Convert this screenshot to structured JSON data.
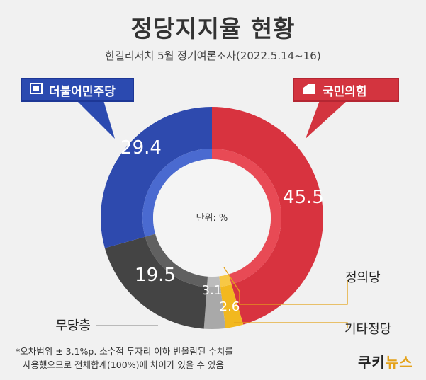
{
  "header": {
    "title": "정당지지율 현황",
    "subtitle": "한길리서치 5월 정기여론조사(2022.5.14~16)"
  },
  "badges": {
    "dem": "더불어민주당",
    "ppp": "국민의힘"
  },
  "chart_data": {
    "type": "donut",
    "unit_label": "단위: %",
    "slices": [
      {
        "name": "국민의힘",
        "value": 45.5,
        "color": "#d8333f",
        "inner_color": "#e84a55",
        "label": "45.5",
        "label_color": "#ffffff"
      },
      {
        "name": "기타정당",
        "value": 2.6,
        "color": "#f2b81f",
        "inner_color": "#f7c845",
        "label": "2.6",
        "label_color": "#ffffff"
      },
      {
        "name": "",
        "value": 3.1,
        "color": "#a9a9a9",
        "inner_color": "#bcbcbc",
        "label": "3.1",
        "label_color": "#ffffff"
      },
      {
        "name": "무당층",
        "value": 19.5,
        "color": "#444444",
        "inner_color": "#606060",
        "label": "19.5",
        "label_color": "#ffffff"
      },
      {
        "name": "더불어민주당",
        "value": 29.4,
        "color": "#2e4aae",
        "inner_color": "#4a6ad0",
        "label": "29.4",
        "label_color": "#ffffff"
      }
    ],
    "callouts": [
      {
        "text": "정의당",
        "color": "#e4a21a"
      },
      {
        "text": "기타정당",
        "color": "#e4a21a"
      },
      {
        "text": "무당층",
        "color": "#999999"
      }
    ]
  },
  "footnote": {
    "line1": "*오차범위 ± 3.1%p. 소수점 두자리 이하 반올림된 수치를",
    "line2": "사용했으므로 전체합계(100%)에 차이가 있을 수 있음"
  },
  "brand": {
    "part1": "쿠키",
    "part2": "뉴스"
  },
  "colors": {
    "background": "#f1f1f1",
    "dem_blue": "#2e4aae",
    "ppp_red": "#d8333f",
    "accent_yellow": "#f2b81f"
  }
}
